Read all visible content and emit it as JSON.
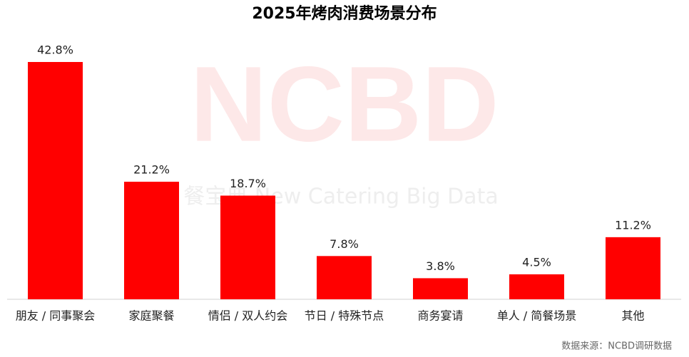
{
  "chart_data": {
    "type": "bar",
    "title": "2025年烤肉消费场景分布",
    "categories": [
      "朋友 / 同事聚会",
      "家庭聚餐",
      "情侣 / 双人约会",
      "节日 / 特殊节点",
      "商务宴请",
      "单人 / 简餐场景",
      "其他"
    ],
    "values": [
      42.8,
      21.2,
      18.7,
      7.8,
      3.8,
      4.5,
      11.2
    ],
    "value_labels": [
      "42.8%",
      "21.2%",
      "18.7%",
      "7.8%",
      "3.8%",
      "4.5%",
      "11.2%"
    ],
    "color": "#ff0000",
    "watermark": {
      "logo": "NCBD",
      "tagline": "餐宝典 New Catering Big Data"
    },
    "source": "数据来源：NCBD调研数据"
  }
}
